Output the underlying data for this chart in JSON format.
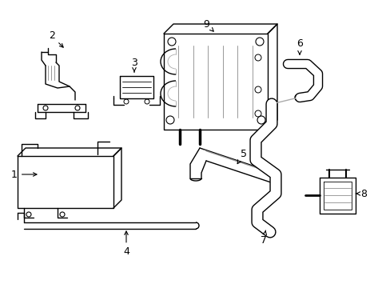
{
  "background_color": "#ffffff",
  "fig_width": 4.89,
  "fig_height": 3.6,
  "dpi": 100,
  "line_color": "#000000",
  "lw": 1.0,
  "font_size": 9
}
